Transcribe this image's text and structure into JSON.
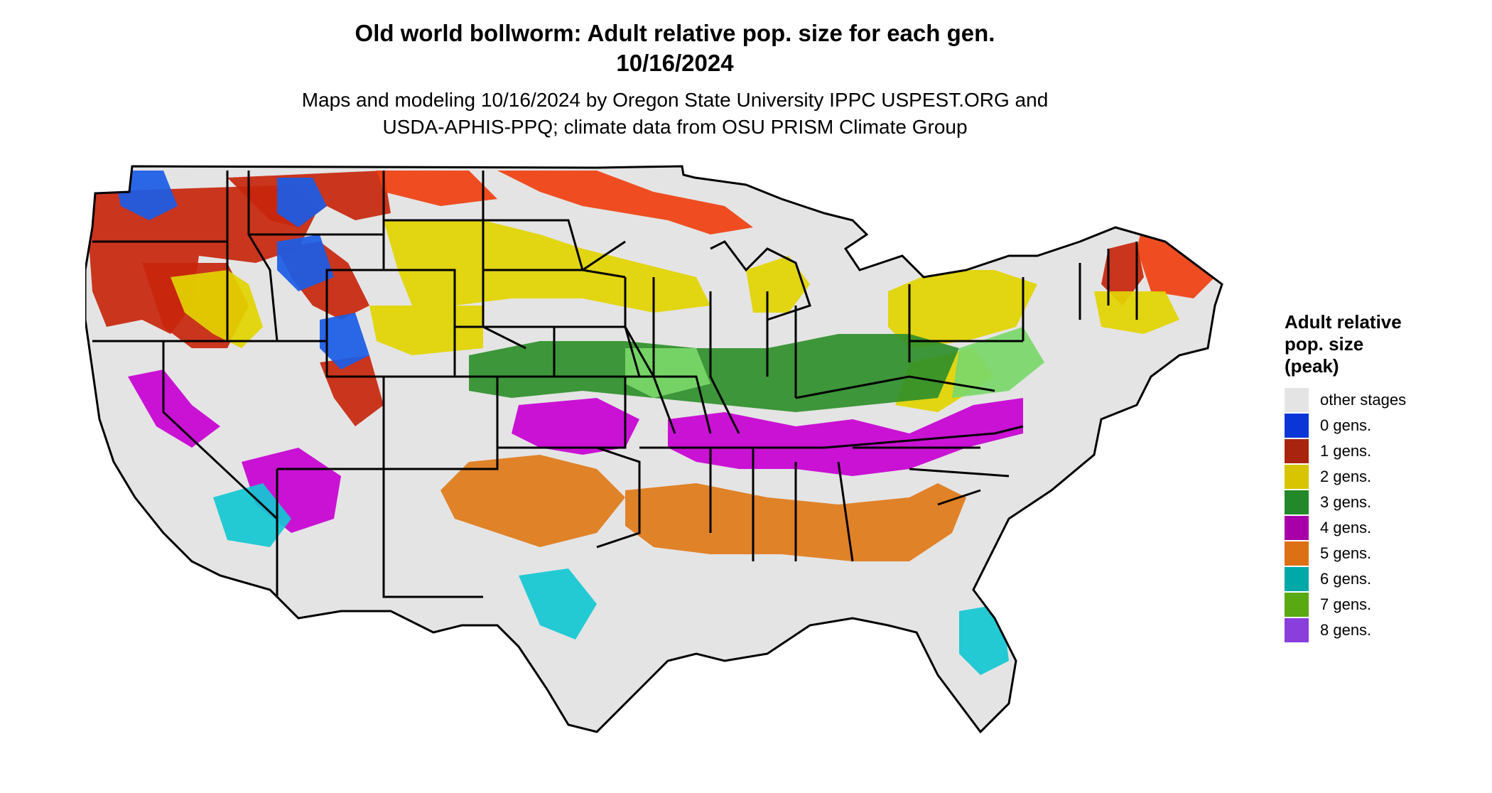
{
  "header": {
    "title_line1": "Old world bollworm: Adult relative pop. size for each gen.",
    "title_line2": "10/16/2024",
    "subtitle_line1": "Maps and modeling 10/16/2024 by Oregon State University IPPC USPEST.ORG and",
    "subtitle_line2": "USDA-APHIS-PPQ; climate data from OSU PRISM Climate Group"
  },
  "legend": {
    "title_line1": "Adult relative",
    "title_line2": "pop. size",
    "title_line3": "(peak)",
    "items": [
      {
        "label": "other stages",
        "color": "#e4e4e4"
      },
      {
        "label": "0 gens.",
        "color": "#0a36d8"
      },
      {
        "label": "1 gens.",
        "color": "#a8240f"
      },
      {
        "label": "2 gens.",
        "color": "#d8c400"
      },
      {
        "label": "3 gens.",
        "color": "#22882a"
      },
      {
        "label": "4 gens.",
        "color": "#a800a8"
      },
      {
        "label": "5 gens.",
        "color": "#dc7014"
      },
      {
        "label": "6 gens.",
        "color": "#00a8a8"
      },
      {
        "label": "7 gens.",
        "color": "#5aa812"
      },
      {
        "label": "8 gens.",
        "color": "#8a3edc"
      }
    ]
  },
  "map": {
    "background_color": "#e4e4e4",
    "border_color": "#000000",
    "region_colors": {
      "north_red": "#c8260c",
      "orange_red": "#f04010",
      "yellow": "#e2d400",
      "green": "#2f8f2a",
      "light_green": "#7ad86a",
      "magenta": "#c800d2",
      "orange": "#e07a18",
      "cyan": "#12c8d2",
      "blue": "#1a5ce6"
    }
  }
}
